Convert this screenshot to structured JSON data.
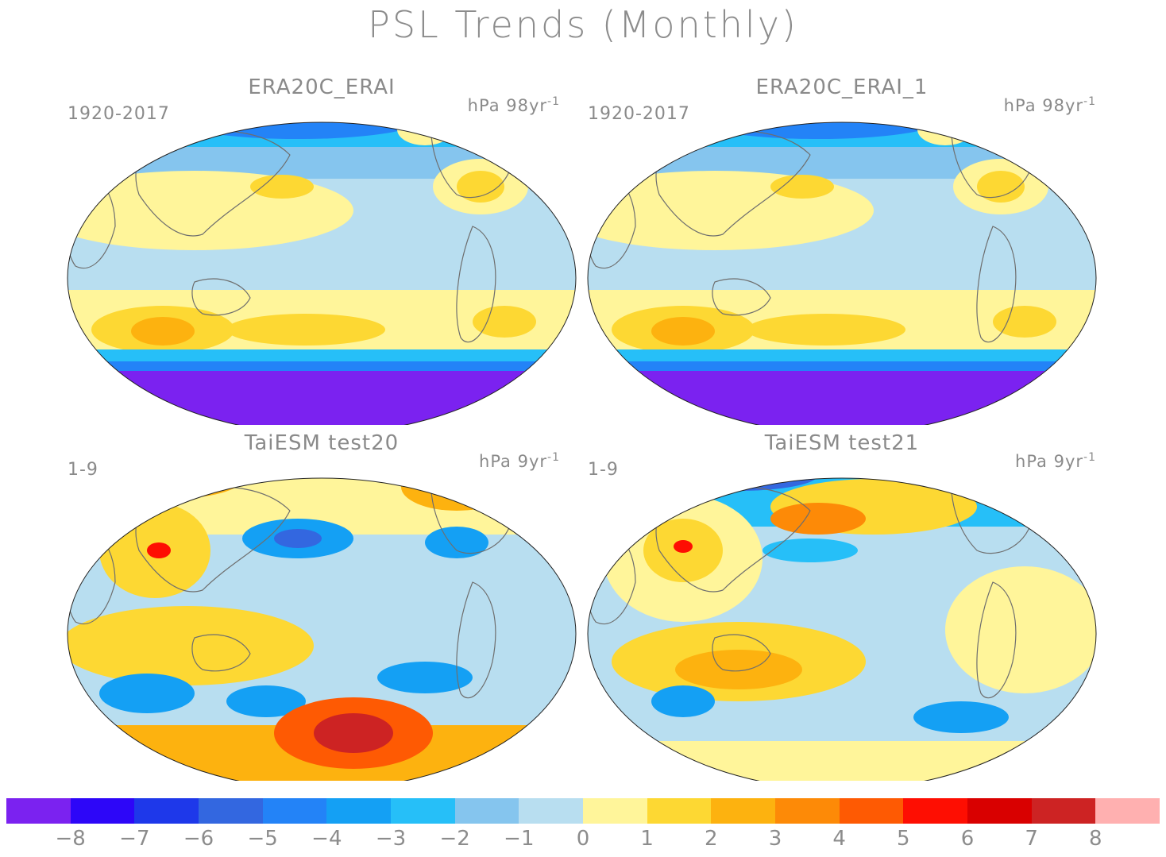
{
  "title": "PSL Trends (Monthly)",
  "panels": [
    {
      "title": "ERA20C_ERAI",
      "period": "1920-2017",
      "units": "hPa 98yr",
      "units_exp": "-1",
      "pattern": "era"
    },
    {
      "title": "ERA20C_ERAI_1",
      "period": "1920-2017",
      "units": "hPa 98yr",
      "units_exp": "-1",
      "pattern": "era"
    },
    {
      "title": "TaiESM test20",
      "period": "1-9",
      "units": "hPa 9yr",
      "units_exp": "-1",
      "pattern": "t20"
    },
    {
      "title": "TaiESM test21",
      "period": "1-9",
      "units": "hPa 9yr",
      "units_exp": "-1",
      "pattern": "t21"
    }
  ],
  "colorbar": {
    "labels": [
      "−8",
      "−7",
      "−6",
      "−5",
      "−4",
      "−3",
      "−2",
      "−1",
      "0",
      "1",
      "2",
      "3",
      "4",
      "5",
      "6",
      "7",
      "8"
    ],
    "colors": [
      "#7b22f0",
      "#2d06f8",
      "#1e38ea",
      "#3367e0",
      "#2383f7",
      "#14a0f4",
      "#26bff8",
      "#85c5ee",
      "#b8def0",
      "#fff59a",
      "#fdd833",
      "#fdb20f",
      "#fd8a07",
      "#fe5a03",
      "#fe0e02",
      "#d90000",
      "#cd2323",
      "#ffb0b0"
    ]
  }
}
